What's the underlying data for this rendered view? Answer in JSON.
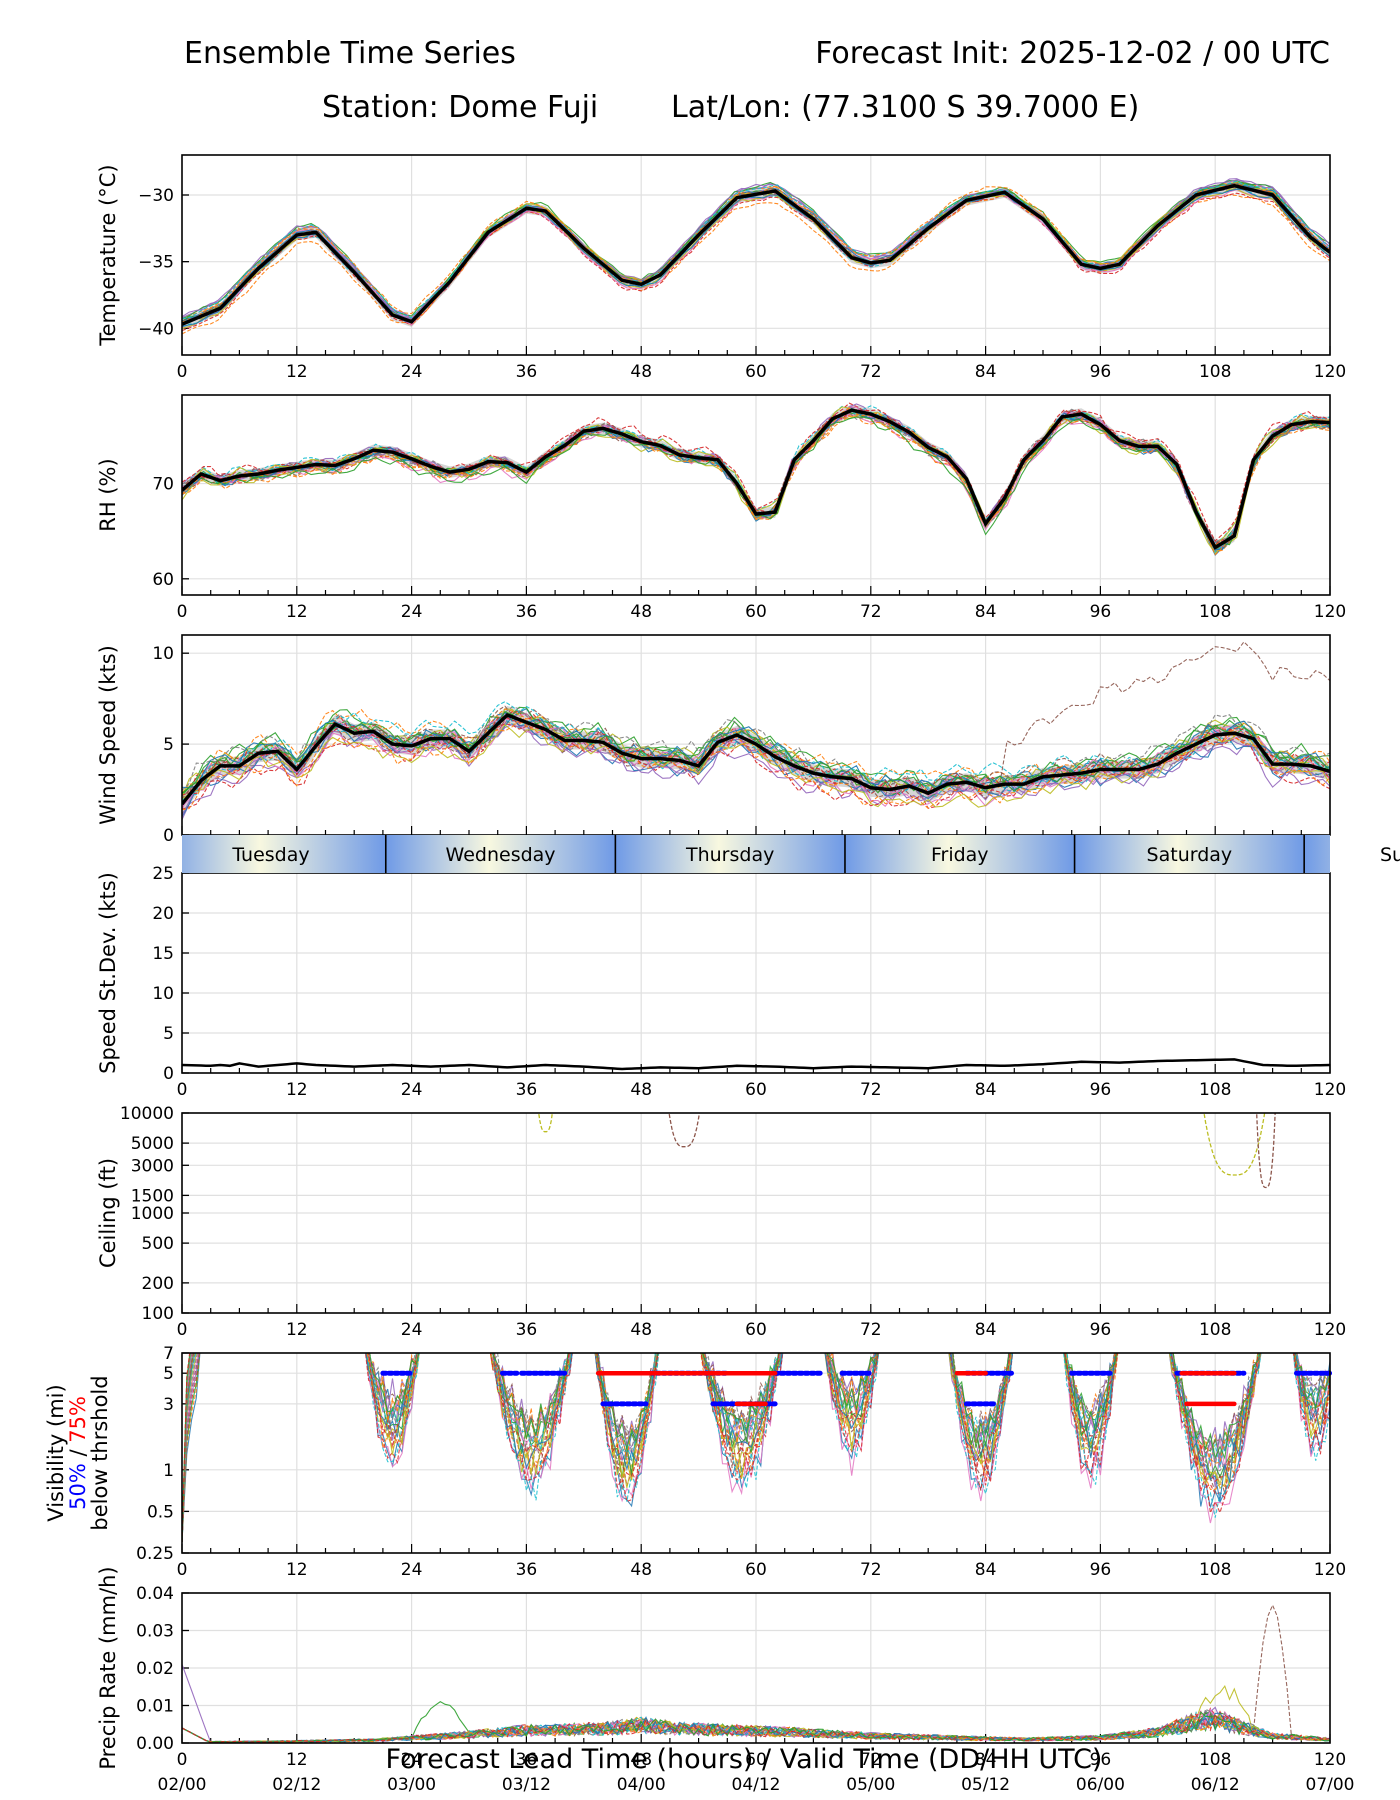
{
  "header": {
    "title_left": "Ensemble Time Series",
    "title_right": "Forecast Init: 2025-12-02 / 00 UTC",
    "station": "Station: Dome Fuji",
    "latlon": "Lat/Lon: (77.3100 S 39.7000 E)"
  },
  "x_axis": {
    "ticks": [
      0,
      12,
      24,
      36,
      48,
      60,
      72,
      84,
      96,
      108,
      120
    ],
    "tick_labels": [
      "0",
      "12",
      "24",
      "36",
      "48",
      "60",
      "72",
      "84",
      "96",
      "108",
      "120"
    ],
    "valid_labels": [
      "02/00",
      "02/12",
      "03/00",
      "03/12",
      "04/00",
      "04/12",
      "05/00",
      "05/12",
      "06/00",
      "06/12",
      "07/00"
    ],
    "xlabel": "Forecast Lead Time (hours) / Valid Time (DD/HH UTC)",
    "xlim": [
      0,
      120
    ]
  },
  "day_strip": {
    "days": [
      "Tuesday",
      "Wednesday",
      "Thursday",
      "Friday",
      "Saturday",
      "Su"
    ],
    "boundaries_hours": [
      21.3,
      45.3,
      69.3,
      93.3,
      117.3
    ]
  },
  "colors": {
    "ensemble_palette": [
      "#1f77b4",
      "#ff7f0e",
      "#2ca02c",
      "#d62728",
      "#9467bd",
      "#8c564b",
      "#e377c2",
      "#7f7f7f",
      "#bcbd22",
      "#17becf"
    ],
    "mean_line": "#000000",
    "spread_fill": "#c8c8c8",
    "grid": "#e0e0e0",
    "strip_light": "#f8f8e0",
    "strip_dark": "#6f9ae6",
    "p50_marker": "#0000ff",
    "p75_marker": "#ff0000"
  },
  "chart_data": [
    {
      "type": "line",
      "name": "temperature",
      "ylabel": "Temperature (°C)",
      "ylim": [
        -42,
        -27
      ],
      "yticks": [
        -40,
        -35,
        -30
      ],
      "ytick_labels": [
        "−40",
        "−35",
        "−30"
      ],
      "mean": {
        "x": [
          0,
          4,
          8,
          12,
          14,
          18,
          22,
          24,
          28,
          32,
          36,
          38,
          42,
          46,
          48,
          50,
          54,
          58,
          62,
          66,
          70,
          72,
          74,
          78,
          82,
          86,
          90,
          94,
          96,
          98,
          102,
          106,
          110,
          114,
          118,
          120
        ],
        "y": [
          -39.7,
          -38.5,
          -35.5,
          -33.0,
          -32.8,
          -35.8,
          -39.0,
          -39.5,
          -36.5,
          -32.8,
          -31.0,
          -31.2,
          -34.0,
          -36.4,
          -36.7,
          -36.0,
          -33.0,
          -30.2,
          -29.7,
          -31.8,
          -34.7,
          -35.1,
          -34.9,
          -32.5,
          -30.4,
          -29.8,
          -31.8,
          -35.2,
          -35.5,
          -35.2,
          -32.3,
          -30.0,
          -29.3,
          -30.0,
          -33.2,
          -34.3
        ]
      }
    },
    {
      "type": "line",
      "name": "relative_humidity",
      "ylabel": "RH (%)",
      "ylim": [
        58.3,
        79.3
      ],
      "yticks": [
        60,
        70
      ],
      "ytick_labels": [
        "60",
        "70"
      ],
      "mean": {
        "x": [
          0,
          2,
          4,
          6,
          8,
          10,
          12,
          14,
          16,
          18,
          20,
          22,
          24,
          26,
          28,
          30,
          32,
          34,
          36,
          38,
          40,
          42,
          44,
          46,
          48,
          50,
          52,
          54,
          56,
          58,
          60,
          62,
          64,
          66,
          68,
          70,
          72,
          74,
          76,
          78,
          80,
          82,
          84,
          86,
          88,
          90,
          92,
          94,
          96,
          98,
          100,
          102,
          104,
          106,
          108,
          110,
          112,
          114,
          116,
          118,
          120
        ],
        "y": [
          69.3,
          71.0,
          70.3,
          70.8,
          71.0,
          71.4,
          71.7,
          72.0,
          71.9,
          72.6,
          73.5,
          73.3,
          72.6,
          71.8,
          71.2,
          71.5,
          72.3,
          72.2,
          71.2,
          72.8,
          74.0,
          75.5,
          75.8,
          75.2,
          74.4,
          74.0,
          73.0,
          72.7,
          72.5,
          70.0,
          66.8,
          67.0,
          72.5,
          74.5,
          76.8,
          77.7,
          77.3,
          76.5,
          75.4,
          73.8,
          72.8,
          70.5,
          65.8,
          68.5,
          72.5,
          74.5,
          77.0,
          77.3,
          76.2,
          74.5,
          73.9,
          73.9,
          72.0,
          67.0,
          63.3,
          64.5,
          72.5,
          75.0,
          76.2,
          76.5,
          76.4
        ]
      }
    },
    {
      "type": "line",
      "name": "wind_speed",
      "ylabel": "Wind Speed (kts)",
      "ylim": [
        0,
        11
      ],
      "yticks": [
        0,
        5,
        10
      ],
      "ytick_labels": [
        "0",
        "5",
        "10"
      ],
      "mean": {
        "x": [
          0,
          2,
          4,
          6,
          8,
          10,
          12,
          14,
          16,
          18,
          20,
          22,
          24,
          26,
          28,
          30,
          32,
          34,
          36,
          38,
          40,
          42,
          44,
          46,
          48,
          50,
          52,
          54,
          56,
          58,
          60,
          62,
          64,
          66,
          68,
          70,
          72,
          74,
          76,
          78,
          80,
          82,
          84,
          86,
          88,
          90,
          92,
          94,
          96,
          98,
          100,
          102,
          104,
          106,
          108,
          110,
          112,
          114,
          116,
          118,
          120
        ],
        "y": [
          1.7,
          3.0,
          3.8,
          3.8,
          4.5,
          4.6,
          3.6,
          4.9,
          6.1,
          5.6,
          5.7,
          5.0,
          4.9,
          5.3,
          5.3,
          4.6,
          5.6,
          6.6,
          6.2,
          5.8,
          5.2,
          5.2,
          5.1,
          4.5,
          4.2,
          4.2,
          4.1,
          3.8,
          5.1,
          5.5,
          5.0,
          4.3,
          3.8,
          3.4,
          3.2,
          3.1,
          2.6,
          2.5,
          2.7,
          2.3,
          2.8,
          2.9,
          2.6,
          2.8,
          2.8,
          3.2,
          3.3,
          3.4,
          3.6,
          3.6,
          3.6,
          3.9,
          4.5,
          5.0,
          5.5,
          5.6,
          5.3,
          3.9,
          3.9,
          3.8,
          3.5
        ]
      }
    },
    {
      "type": "line",
      "name": "speed_stdev",
      "ylabel": "Speed St.Dev. (kts)",
      "ylim": [
        0,
        25
      ],
      "yticks": [
        0,
        5,
        10,
        15,
        20,
        25
      ],
      "ytick_labels": [
        "0",
        "5",
        "10",
        "15",
        "20",
        "25"
      ],
      "mean": {
        "x": [
          0,
          3,
          4,
          5,
          6,
          8,
          10,
          12,
          14,
          18,
          22,
          26,
          30,
          34,
          38,
          42,
          46,
          50,
          54,
          58,
          62,
          66,
          70,
          74,
          78,
          82,
          86,
          90,
          94,
          98,
          102,
          106,
          110,
          113,
          116,
          120
        ],
        "y": [
          1.0,
          0.9,
          1.0,
          0.9,
          1.2,
          0.8,
          1.0,
          1.2,
          1.0,
          0.8,
          1.0,
          0.8,
          1.0,
          0.7,
          1.0,
          0.8,
          0.5,
          0.7,
          0.6,
          0.9,
          0.8,
          0.6,
          0.8,
          0.7,
          0.6,
          1.0,
          0.9,
          1.1,
          1.4,
          1.3,
          1.5,
          1.6,
          1.7,
          1.0,
          0.9,
          1.0
        ]
      }
    },
    {
      "type": "line",
      "name": "ceiling",
      "ylabel": "Ceiling (ft)",
      "yscale": "log",
      "ylim": [
        100,
        10000
      ],
      "yticks": [
        100,
        200,
        500,
        1000,
        1500,
        3000,
        5000,
        10000
      ],
      "ytick_labels": [
        "100",
        "200",
        "500",
        "1000",
        "1500",
        "3000",
        "5000",
        "10000"
      ]
    },
    {
      "type": "line",
      "name": "visibility",
      "ylabel": "Visibility (mi)",
      "ylabel_50": "50%",
      "ylabel_sep": " / ",
      "ylabel_75": "75%",
      "ylabel_below": "below thrshold",
      "yscale": "log",
      "ylim": [
        0.25,
        7
      ],
      "yticks": [
        0.25,
        0.5,
        1,
        3,
        5,
        7
      ],
      "ytick_labels": [
        "0.25",
        "0.5",
        "1",
        "3",
        "5",
        "7"
      ],
      "below_threshold_segments": [
        {
          "level": "50%",
          "threshold": 5,
          "x": [
            21,
            24
          ]
        },
        {
          "level": "50%",
          "threshold": 5,
          "x": [
            33.5,
            35
          ]
        },
        {
          "level": "50%",
          "threshold": 5,
          "x": [
            35.5,
            40
          ]
        },
        {
          "level": "50%",
          "threshold": 5,
          "x": [
            49,
            57
          ]
        },
        {
          "level": "50%",
          "threshold": 5,
          "x": [
            62,
            67
          ]
        },
        {
          "level": "50%",
          "threshold": 5,
          "x": [
            69,
            72
          ]
        },
        {
          "level": "50%",
          "threshold": 5,
          "x": [
            82,
            87
          ]
        },
        {
          "level": "50%",
          "threshold": 5,
          "x": [
            93,
            97
          ]
        },
        {
          "level": "50%",
          "threshold": 5,
          "x": [
            104,
            111
          ]
        },
        {
          "level": "50%",
          "threshold": 5,
          "x": [
            116.5,
            120
          ]
        },
        {
          "level": "50%",
          "threshold": 3,
          "x": [
            44,
            48.5
          ]
        },
        {
          "level": "50%",
          "threshold": 3,
          "x": [
            55.5,
            62
          ]
        },
        {
          "level": "50%",
          "threshold": 3,
          "x": [
            82,
            85
          ]
        },
        {
          "level": "75%",
          "threshold": 5,
          "x": [
            43.5,
            62
          ]
        },
        {
          "level": "75%",
          "threshold": 5,
          "x": [
            81,
            84
          ]
        },
        {
          "level": "75%",
          "threshold": 5,
          "x": [
            104.5,
            110
          ]
        },
        {
          "level": "75%",
          "threshold": 3,
          "x": [
            58,
            61
          ]
        },
        {
          "level": "75%",
          "threshold": 3,
          "x": [
            105,
            110
          ]
        }
      ]
    },
    {
      "type": "line",
      "name": "precip_rate",
      "ylabel": "Precip Rate (mm/h)",
      "ylim": [
        0,
        0.04
      ],
      "yticks": [
        0,
        0.01,
        0.02,
        0.03,
        0.04
      ],
      "ytick_labels": [
        "0.00",
        "0.01",
        "0.02",
        "0.03",
        "0.04"
      ],
      "mean": {
        "x": [
          0,
          3,
          10,
          20,
          28,
          36,
          44,
          48,
          52,
          58,
          64,
          72,
          80,
          88,
          96,
          102,
          106,
          108,
          110,
          114,
          120
        ],
        "y": [
          0.0,
          0.0003,
          0.0004,
          0.0008,
          0.002,
          0.0035,
          0.004,
          0.005,
          0.004,
          0.0035,
          0.003,
          0.002,
          0.0015,
          0.001,
          0.0015,
          0.003,
          0.006,
          0.007,
          0.005,
          0.002,
          0.001
        ]
      }
    }
  ]
}
